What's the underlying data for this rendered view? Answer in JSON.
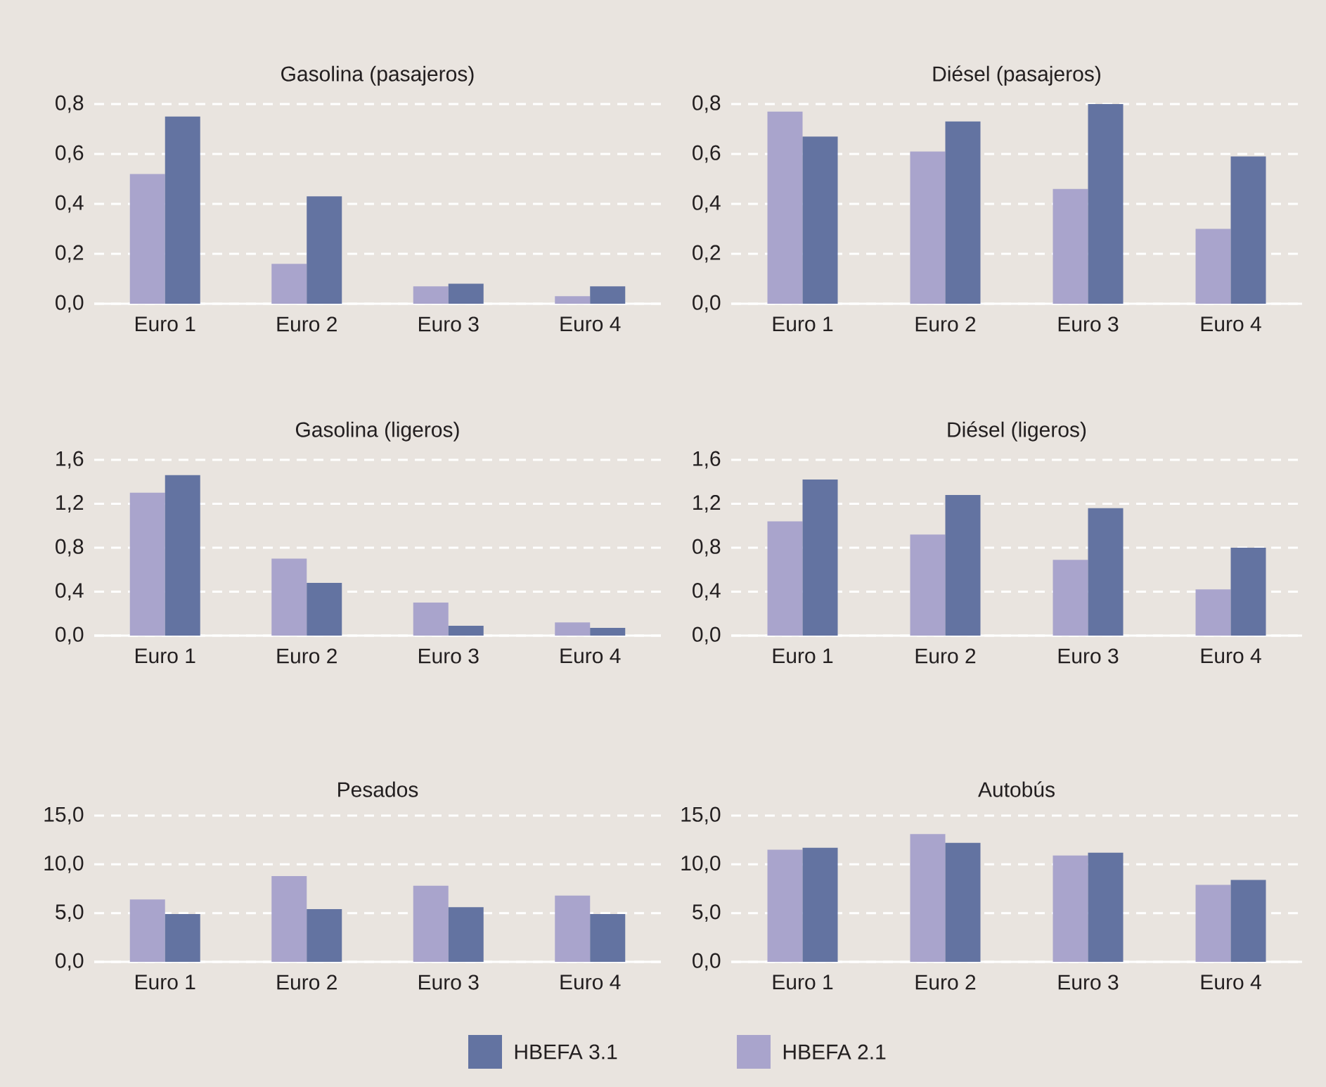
{
  "chart_data": [
    {
      "type": "bar",
      "title": "Gasolina (pasajeros)",
      "categories": [
        "Euro 1",
        "Euro 2",
        "Euro 3",
        "Euro 4"
      ],
      "ylim": [
        0,
        0.8
      ],
      "yticks": [
        {
          "value": 0,
          "label": "0,0"
        },
        {
          "value": 0.2,
          "label": "0,2"
        },
        {
          "value": 0.4,
          "label": "0,4"
        },
        {
          "value": 0.6,
          "label": "0,6"
        },
        {
          "value": 0.8,
          "label": "0,8"
        }
      ],
      "grid": "y",
      "series": [
        {
          "color": "#a9a4cc",
          "values": [
            0.52,
            0.16,
            0.07,
            0.03
          ]
        },
        {
          "color": "#6373a1",
          "values": [
            0.75,
            0.43,
            0.08,
            0.07
          ]
        }
      ]
    },
    {
      "type": "bar",
      "title": "Diésel (pasajeros)",
      "categories": [
        "Euro 1",
        "Euro 2",
        "Euro 3",
        "Euro 4"
      ],
      "ylim": [
        0,
        0.8
      ],
      "yticks": [
        {
          "value": 0,
          "label": "0,0"
        },
        {
          "value": 0.2,
          "label": "0,2"
        },
        {
          "value": 0.4,
          "label": "0,4"
        },
        {
          "value": 0.6,
          "label": "0,6"
        },
        {
          "value": 0.8,
          "label": "0,8"
        }
      ],
      "grid": "y",
      "series": [
        {
          "color": "#a9a4cc",
          "values": [
            0.77,
            0.61,
            0.46,
            0.3
          ]
        },
        {
          "color": "#6373a1",
          "values": [
            0.67,
            0.73,
            0.8,
            0.59
          ]
        }
      ]
    },
    {
      "type": "bar",
      "title": "Gasolina (ligeros)",
      "categories": [
        "Euro 1",
        "Euro 2",
        "Euro 3",
        "Euro 4"
      ],
      "ylim": [
        0,
        1.6
      ],
      "yticks": [
        {
          "value": 0,
          "label": "0,0"
        },
        {
          "value": 0.4,
          "label": "0,4"
        },
        {
          "value": 0.8,
          "label": "0,8"
        },
        {
          "value": 1.2,
          "label": "1,2"
        },
        {
          "value": 1.6,
          "label": "1,6"
        }
      ],
      "grid": "y",
      "series": [
        {
          "color": "#a9a4cc",
          "values": [
            1.3,
            0.7,
            0.3,
            0.12
          ]
        },
        {
          "color": "#6373a1",
          "values": [
            1.46,
            0.48,
            0.09,
            0.07
          ]
        }
      ]
    },
    {
      "type": "bar",
      "title": "Diésel (ligeros)",
      "categories": [
        "Euro 1",
        "Euro 2",
        "Euro 3",
        "Euro 4"
      ],
      "ylim": [
        0,
        1.6
      ],
      "yticks": [
        {
          "value": 0,
          "label": "0,0"
        },
        {
          "value": 0.4,
          "label": "0,4"
        },
        {
          "value": 0.8,
          "label": "0,8"
        },
        {
          "value": 1.2,
          "label": "1,2"
        },
        {
          "value": 1.6,
          "label": "1,6"
        }
      ],
      "grid": "y",
      "series": [
        {
          "color": "#a9a4cc",
          "values": [
            1.04,
            0.92,
            0.69,
            0.42
          ]
        },
        {
          "color": "#6373a1",
          "values": [
            1.42,
            1.28,
            1.16,
            0.8
          ]
        }
      ]
    },
    {
      "type": "bar",
      "title": "Pesados",
      "categories": [
        "Euro 1",
        "Euro 2",
        "Euro 3",
        "Euro 4"
      ],
      "ylim": [
        0,
        15
      ],
      "yticks": [
        {
          "value": 0,
          "label": "0,0"
        },
        {
          "value": 5,
          "label": "5,0"
        },
        {
          "value": 10,
          "label": "10,0"
        },
        {
          "value": 15,
          "label": "15,0"
        }
      ],
      "grid": "y",
      "legend": "bottom",
      "series": [
        {
          "name": "HBEFA 2.1",
          "color": "#a9a4cc",
          "values": [
            6.4,
            8.8,
            7.8,
            6.8
          ]
        },
        {
          "name": "HBEFA 3.1",
          "color": "#6373a1",
          "values": [
            4.9,
            5.4,
            5.6,
            4.9
          ]
        }
      ]
    },
    {
      "type": "bar",
      "title": "Autobús",
      "categories": [
        "Euro 1",
        "Euro 2",
        "Euro 3",
        "Euro 4"
      ],
      "ylim": [
        0,
        15
      ],
      "yticks": [
        {
          "value": 0,
          "label": "0,0"
        },
        {
          "value": 5,
          "label": "5,0"
        },
        {
          "value": 10,
          "label": "10,0"
        },
        {
          "value": 15,
          "label": "15,0"
        }
      ],
      "grid": "y",
      "series": [
        {
          "color": "#a9a4cc",
          "values": [
            11.5,
            13.1,
            10.9,
            7.9
          ]
        },
        {
          "color": "#6373a1",
          "values": [
            11.7,
            12.2,
            11.2,
            8.4
          ]
        }
      ]
    }
  ]
}
